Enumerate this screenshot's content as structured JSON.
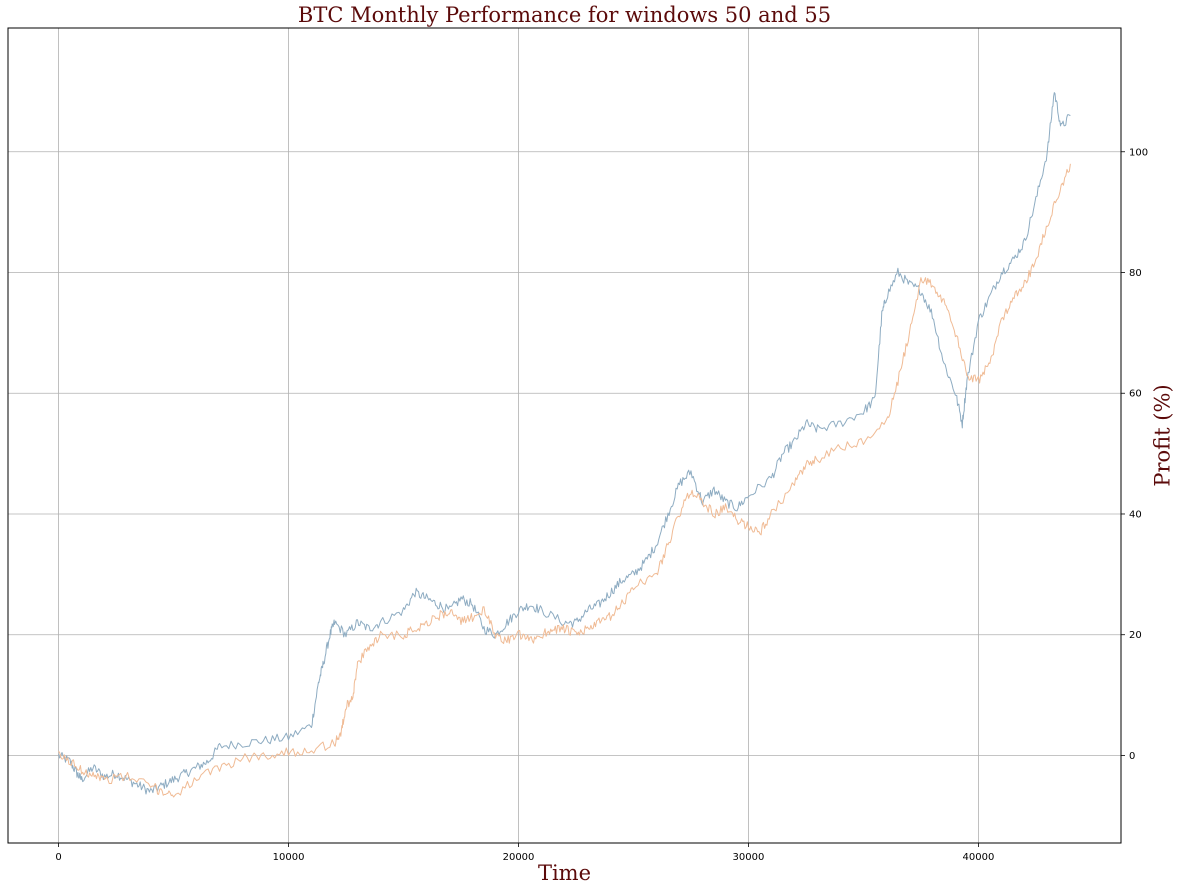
{
  "chart_data": {
    "type": "line",
    "title": "BTC Monthly Performance for windows 50 and 55",
    "xlabel": "Time",
    "ylabel": "Profit (%)",
    "y_axis_side": "right",
    "xlim": [
      -2200,
      46200
    ],
    "ylim": [
      -14.5,
      120.5
    ],
    "x_ticks": [
      0,
      10000,
      20000,
      30000,
      40000
    ],
    "x_tick_labels": [
      "0",
      "10000",
      "20000",
      "30000",
      "40000"
    ],
    "y_ticks": [
      0,
      20,
      40,
      60,
      80,
      100
    ],
    "y_tick_labels": [
      "0",
      "20",
      "40",
      "60",
      "80",
      "100"
    ],
    "grid": true,
    "legend": "none",
    "series": [
      {
        "color": "#8eacc2",
        "x": [
          0,
          500,
          800,
          1000,
          1500,
          2000,
          2500,
          3000,
          3500,
          4000,
          4500,
          5000,
          5500,
          6000,
          6500,
          7000,
          8000,
          9000,
          10000,
          11000,
          11300,
          11500,
          11800,
          12000,
          12500,
          13000,
          13500,
          14000,
          15000,
          15500,
          16000,
          16500,
          17000,
          17500,
          18000,
          18500,
          19000,
          19500,
          20000,
          20500,
          21000,
          22000,
          22500,
          23000,
          23500,
          24000,
          24500,
          25000,
          25500,
          26000,
          26500,
          27000,
          27500,
          28000,
          28500,
          29000,
          29500,
          30000,
          31000,
          31500,
          32000,
          32500,
          33000,
          34000,
          35000,
          35500,
          35800,
          36000,
          36500,
          37000,
          37500,
          38000,
          38500,
          39000,
          39300,
          39500,
          40000,
          40500,
          41000,
          41500,
          42000,
          42500,
          43000,
          43300,
          43600,
          44000
        ],
        "y": [
          0,
          -1,
          -3,
          -4,
          -2,
          -3.5,
          -3,
          -4,
          -5,
          -6,
          -5,
          -4,
          -3,
          -2,
          -1,
          1.5,
          2,
          2.5,
          3,
          5,
          12,
          15,
          20,
          22,
          20,
          22,
          21,
          22,
          24,
          27,
          26,
          25,
          24,
          26,
          25,
          21,
          20,
          22,
          24,
          25,
          24,
          22,
          22,
          24,
          25,
          27,
          29,
          30,
          32,
          35,
          40,
          45,
          47,
          42,
          44,
          42,
          41,
          43,
          46,
          50,
          52,
          55,
          54,
          55,
          57,
          59,
          73,
          76,
          80,
          78,
          77,
          73,
          65,
          60,
          55,
          62,
          72,
          76,
          80,
          82,
          85,
          92,
          100,
          110,
          104,
          106
        ]
      },
      {
        "color": "#f0bb95",
        "x": [
          0,
          500,
          1000,
          1500,
          2000,
          3000,
          4000,
          4500,
          5000,
          6000,
          7000,
          8000,
          9000,
          10000,
          11000,
          12000,
          12300,
          12500,
          12800,
          13000,
          13500,
          14000,
          15000,
          15500,
          16000,
          16500,
          17000,
          17500,
          18000,
          18500,
          19000,
          19500,
          20000,
          20500,
          21000,
          21500,
          22000,
          22500,
          23000,
          23500,
          24000,
          24500,
          25000,
          26000,
          26500,
          27000,
          27500,
          28000,
          28500,
          29000,
          29500,
          30000,
          30500,
          31000,
          32000,
          32500,
          33000,
          34000,
          35000,
          36000,
          36500,
          37000,
          37500,
          38000,
          38500,
          39000,
          39500,
          40000,
          40500,
          41000,
          41500,
          42000,
          42500,
          43000,
          43500,
          44000
        ],
        "y": [
          0,
          -1,
          -2.5,
          -3,
          -4,
          -3.5,
          -5,
          -6,
          -6.5,
          -4,
          -2,
          -0.5,
          0,
          0.5,
          1,
          2,
          4,
          8,
          10,
          15,
          18,
          20,
          20,
          21,
          22,
          23,
          24,
          22,
          23,
          24,
          20,
          19,
          20,
          19,
          20,
          21,
          21,
          20,
          21,
          22,
          23,
          25,
          28,
          30,
          35,
          40,
          44,
          42,
          40,
          41,
          39,
          38,
          37,
          40,
          45,
          48,
          49,
          51,
          52,
          55,
          62,
          70,
          79,
          78,
          75,
          70,
          63,
          62,
          65,
          72,
          76,
          78,
          82,
          88,
          93,
          98
        ]
      }
    ]
  }
}
